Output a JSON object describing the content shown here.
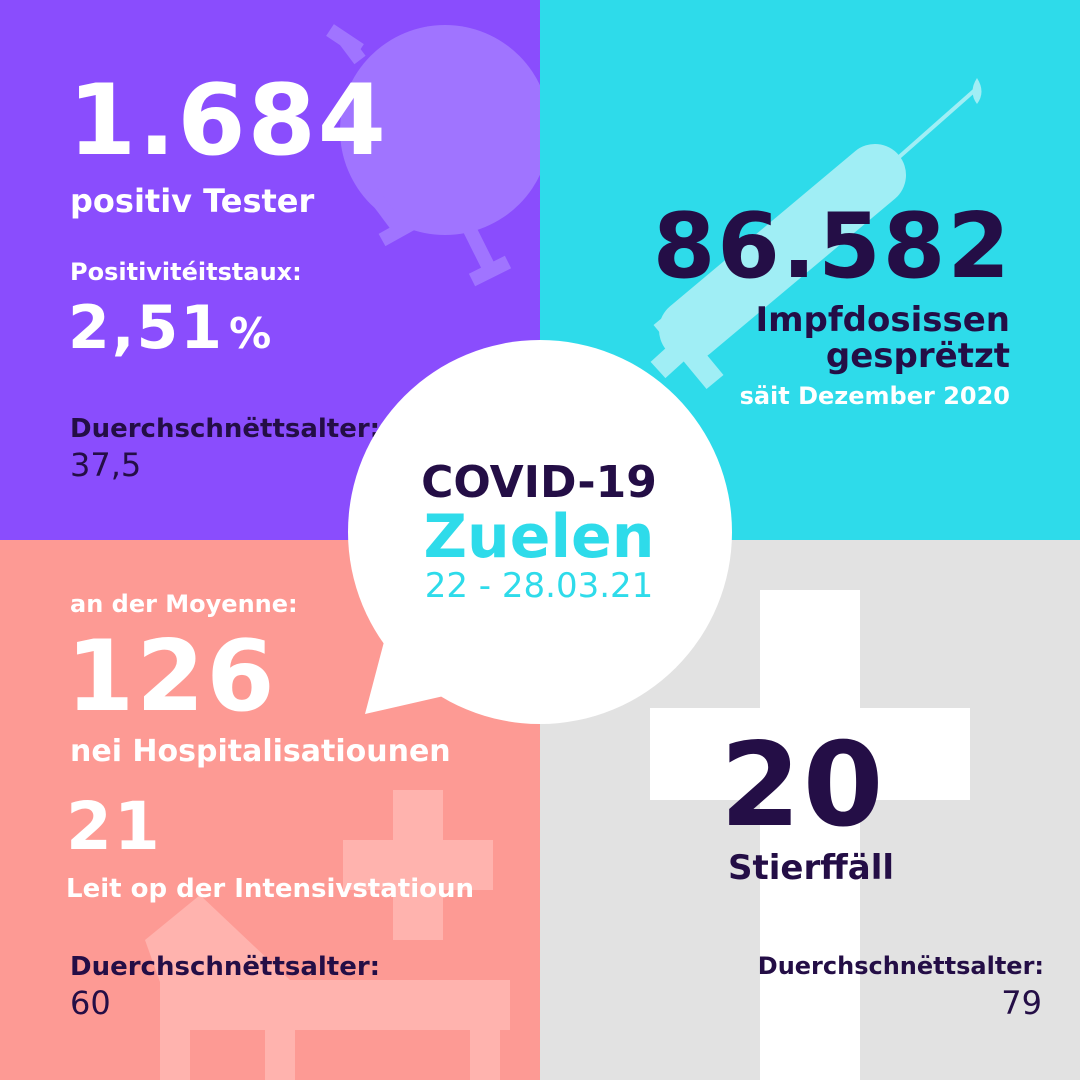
{
  "colors": {
    "purple": "#8a4dfd",
    "cyan": "#2edbea",
    "pink": "#fd9a94",
    "grey": "#e2e2e2",
    "dark": "#240e46",
    "white": "#ffffff"
  },
  "icons": {
    "purple": "virus-icon",
    "cyan": "syringe-icon",
    "pink": "hospital-bed-cross-icon",
    "grey": "cross-icon"
  },
  "cases": {
    "number": "1.684",
    "label": "positiv Tester",
    "rate_label": "Positivitéitstaux:",
    "rate_value": "2,51",
    "rate_unit": "%",
    "age_label": "Duerchschnëttsalter:",
    "age_value": "37,5"
  },
  "vaccines": {
    "number": "86.582",
    "label_line1": "Impfdosissen",
    "label_line2": "gesprëtzt",
    "since": "säit Dezember 2020"
  },
  "center": {
    "title": "COVID-19",
    "subtitle": "Zuelen",
    "dates": "22 - 28.03.21"
  },
  "hospital": {
    "avg_label": "an der Moyenne:",
    "number": "126",
    "label": "nei Hospitalisatiounen",
    "icu_number": "21",
    "icu_label": "Leit op der Intensivstatioun",
    "age_label": "Duerchschnëttsalter:",
    "age_value": "60"
  },
  "deaths": {
    "number": "20",
    "label": "Stierffäll",
    "age_label": "Duerchschnëttsalter:",
    "age_value": "79"
  }
}
